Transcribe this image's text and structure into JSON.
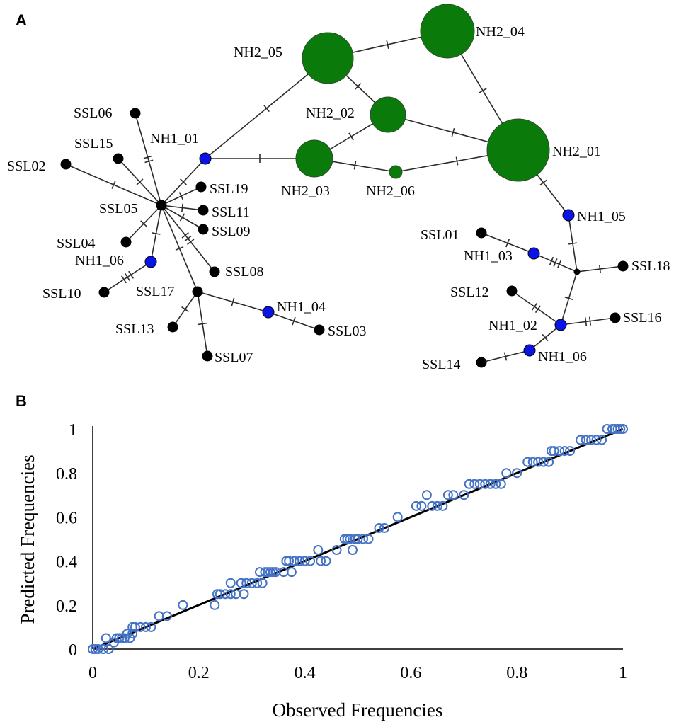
{
  "panel_a": {
    "letter": "A",
    "colors": {
      "NH2": "#0a7a0a",
      "NH1": "#0a14e6",
      "SSL": "#000000"
    },
    "nodes": [
      {
        "id": "NH2_05",
        "label": "NH2_05",
        "group": "NH2"
      },
      {
        "id": "NH2_04",
        "label": "NH2_04",
        "group": "NH2"
      },
      {
        "id": "NH2_02",
        "label": "NH2_02",
        "group": "NH2"
      },
      {
        "id": "NH2_03",
        "label": "NH2_03",
        "group": "NH2"
      },
      {
        "id": "NH2_06",
        "label": "NH2_06",
        "group": "NH2"
      },
      {
        "id": "NH2_01",
        "label": "NH2_01",
        "group": "NH2"
      },
      {
        "id": "NH1_01",
        "label": "NH1_01",
        "group": "NH1"
      },
      {
        "id": "NH1_06a",
        "label": "NH1_06",
        "group": "NH1"
      },
      {
        "id": "NH1_04",
        "label": "NH1_04",
        "group": "NH1"
      },
      {
        "id": "NH1_05",
        "label": "NH1_05",
        "group": "NH1"
      },
      {
        "id": "NH1_03",
        "label": "NH1_03",
        "group": "NH1"
      },
      {
        "id": "NH1_02",
        "label": "NH1_02",
        "group": "NH1"
      },
      {
        "id": "NH1_06b",
        "label": "NH1_06",
        "group": "NH1"
      },
      {
        "id": "SSL06",
        "label": "SSL06",
        "group": "SSL"
      },
      {
        "id": "SSL15",
        "label": "SSL15",
        "group": "SSL"
      },
      {
        "id": "SSL02",
        "label": "SSL02",
        "group": "SSL"
      },
      {
        "id": "SSL05",
        "label": "SSL05",
        "group": "SSL"
      },
      {
        "id": "SSL19",
        "label": "SSL19",
        "group": "SSL"
      },
      {
        "id": "SSL11",
        "label": "SSL11",
        "group": "SSL"
      },
      {
        "id": "SSL09",
        "label": "SSL09",
        "group": "SSL"
      },
      {
        "id": "SSL04",
        "label": "SSL04",
        "group": "SSL"
      },
      {
        "id": "SSL08",
        "label": "SSL08",
        "group": "SSL"
      },
      {
        "id": "SSL10",
        "label": "SSL10",
        "group": "SSL"
      },
      {
        "id": "SSL17",
        "label": "SSL17",
        "group": "SSL"
      },
      {
        "id": "SSL13",
        "label": "SSL13",
        "group": "SSL"
      },
      {
        "id": "SSL07",
        "label": "SSL07",
        "group": "SSL"
      },
      {
        "id": "SSL03",
        "label": "SSL03",
        "group": "SSL"
      },
      {
        "id": "SSL01",
        "label": "SSL01",
        "group": "SSL"
      },
      {
        "id": "SSL18",
        "label": "SSL18",
        "group": "SSL"
      },
      {
        "id": "SSL12",
        "label": "SSL12",
        "group": "SSL"
      },
      {
        "id": "SSL16",
        "label": "SSL16",
        "group": "SSL"
      },
      {
        "id": "SSL14",
        "label": "SSL14",
        "group": "SSL"
      },
      {
        "id": "MV1",
        "label": "",
        "group": "SSL"
      }
    ],
    "edges": [
      {
        "from": "NH2_05",
        "to": "NH2_04",
        "steps": 1
      },
      {
        "from": "NH2_05",
        "to": "NH2_02",
        "steps": 1
      },
      {
        "from": "NH2_04",
        "to": "NH2_01",
        "steps": 1
      },
      {
        "from": "NH2_02",
        "to": "NH2_03",
        "steps": 1
      },
      {
        "from": "NH2_02",
        "to": "NH2_01",
        "steps": 1
      },
      {
        "from": "NH2_03",
        "to": "NH2_06",
        "steps": 1
      },
      {
        "from": "NH2_06",
        "to": "NH2_01",
        "steps": 1
      },
      {
        "from": "NH1_01",
        "to": "NH2_05",
        "steps": 1
      },
      {
        "from": "NH1_01",
        "to": "NH2_03",
        "steps": 1
      },
      {
        "from": "SSL05",
        "to": "NH1_01",
        "steps": 1
      },
      {
        "from": "SSL05",
        "to": "SSL06",
        "steps": 2
      },
      {
        "from": "SSL05",
        "to": "SSL15",
        "steps": 1
      },
      {
        "from": "SSL05",
        "to": "SSL02",
        "steps": 1
      },
      {
        "from": "SSL05",
        "to": "SSL19",
        "steps": 1
      },
      {
        "from": "SSL05",
        "to": "SSL11",
        "steps": 1
      },
      {
        "from": "SSL05",
        "to": "SSL09",
        "steps": 1
      },
      {
        "from": "SSL05",
        "to": "SSL04",
        "steps": 1
      },
      {
        "from": "SSL05",
        "to": "SSL08",
        "steps": 3
      },
      {
        "from": "SSL05",
        "to": "NH1_06a",
        "steps": 1
      },
      {
        "from": "NH1_06a",
        "to": "SSL10",
        "steps": 3
      },
      {
        "from": "SSL05",
        "to": "SSL17",
        "steps": 1
      },
      {
        "from": "SSL17",
        "to": "SSL13",
        "steps": 1
      },
      {
        "from": "SSL17",
        "to": "SSL07",
        "steps": 1
      },
      {
        "from": "SSL17",
        "to": "NH1_04",
        "steps": 1
      },
      {
        "from": "NH1_04",
        "to": "SSL03",
        "steps": 1
      },
      {
        "from": "NH2_01",
        "to": "NH1_05",
        "steps": 1
      },
      {
        "from": "NH1_05",
        "to": "MV1",
        "steps": 1
      },
      {
        "from": "SSL01",
        "to": "NH1_03",
        "steps": 1
      },
      {
        "from": "NH1_03",
        "to": "MV1",
        "steps": 3
      },
      {
        "from": "MV1",
        "to": "SSL18",
        "steps": 1
      },
      {
        "from": "MV1",
        "to": "NH1_02",
        "steps": 1
      },
      {
        "from": "SSL12",
        "to": "NH1_02",
        "steps": 2
      },
      {
        "from": "NH1_02",
        "to": "SSL16",
        "steps": 2
      },
      {
        "from": "NH1_02",
        "to": "NH1_06b",
        "steps": 1
      },
      {
        "from": "NH1_06b",
        "to": "SSL14",
        "steps": 1
      }
    ]
  },
  "panel_b": {
    "letter": "B",
    "chart_data": {
      "type": "scatter",
      "xlabel": "Observed Frequencies",
      "ylabel": "Predicted Frequencies",
      "xlim": [
        0,
        1
      ],
      "ylim": [
        0,
        1
      ],
      "x_ticks": [
        "0",
        "0.2",
        "0.4",
        "0.6",
        "0.8",
        "1"
      ],
      "y_ticks": [
        "0",
        "0.2",
        "0.4",
        "0.6",
        "0.8",
        "1"
      ],
      "grid": false,
      "marker_color": "#4472c4",
      "line_color": "#000000",
      "fit_line": {
        "x": [
          0,
          1
        ],
        "y": [
          0,
          1
        ]
      },
      "points": [
        [
          0.0,
          0.0
        ],
        [
          0.005,
          0.0
        ],
        [
          0.01,
          0.0
        ],
        [
          0.02,
          0.0
        ],
        [
          0.03,
          0.0
        ],
        [
          0.025,
          0.05
        ],
        [
          0.04,
          0.03
        ],
        [
          0.045,
          0.05
        ],
        [
          0.05,
          0.05
        ],
        [
          0.055,
          0.05
        ],
        [
          0.06,
          0.05
        ],
        [
          0.065,
          0.07
        ],
        [
          0.07,
          0.05
        ],
        [
          0.075,
          0.07
        ],
        [
          0.075,
          0.1
        ],
        [
          0.08,
          0.1
        ],
        [
          0.09,
          0.1
        ],
        [
          0.1,
          0.1
        ],
        [
          0.11,
          0.1
        ],
        [
          0.125,
          0.15
        ],
        [
          0.14,
          0.15
        ],
        [
          0.17,
          0.2
        ],
        [
          0.23,
          0.2
        ],
        [
          0.235,
          0.25
        ],
        [
          0.24,
          0.25
        ],
        [
          0.25,
          0.25
        ],
        [
          0.26,
          0.25
        ],
        [
          0.26,
          0.3
        ],
        [
          0.27,
          0.25
        ],
        [
          0.28,
          0.3
        ],
        [
          0.285,
          0.25
        ],
        [
          0.29,
          0.3
        ],
        [
          0.3,
          0.3
        ],
        [
          0.31,
          0.3
        ],
        [
          0.315,
          0.35
        ],
        [
          0.32,
          0.3
        ],
        [
          0.325,
          0.35
        ],
        [
          0.33,
          0.35
        ],
        [
          0.335,
          0.35
        ],
        [
          0.34,
          0.35
        ],
        [
          0.345,
          0.35
        ],
        [
          0.36,
          0.35
        ],
        [
          0.365,
          0.4
        ],
        [
          0.37,
          0.4
        ],
        [
          0.375,
          0.35
        ],
        [
          0.38,
          0.4
        ],
        [
          0.39,
          0.4
        ],
        [
          0.4,
          0.4
        ],
        [
          0.41,
          0.4
        ],
        [
          0.425,
          0.45
        ],
        [
          0.43,
          0.4
        ],
        [
          0.44,
          0.4
        ],
        [
          0.46,
          0.45
        ],
        [
          0.475,
          0.5
        ],
        [
          0.48,
          0.5
        ],
        [
          0.485,
          0.5
        ],
        [
          0.49,
          0.45
        ],
        [
          0.495,
          0.5
        ],
        [
          0.5,
          0.5
        ],
        [
          0.51,
          0.5
        ],
        [
          0.52,
          0.5
        ],
        [
          0.54,
          0.55
        ],
        [
          0.55,
          0.55
        ],
        [
          0.575,
          0.6
        ],
        [
          0.61,
          0.65
        ],
        [
          0.62,
          0.65
        ],
        [
          0.63,
          0.7
        ],
        [
          0.64,
          0.65
        ],
        [
          0.65,
          0.65
        ],
        [
          0.66,
          0.65
        ],
        [
          0.67,
          0.7
        ],
        [
          0.68,
          0.7
        ],
        [
          0.7,
          0.7
        ],
        [
          0.71,
          0.75
        ],
        [
          0.72,
          0.75
        ],
        [
          0.73,
          0.75
        ],
        [
          0.74,
          0.75
        ],
        [
          0.75,
          0.75
        ],
        [
          0.76,
          0.75
        ],
        [
          0.77,
          0.75
        ],
        [
          0.78,
          0.8
        ],
        [
          0.8,
          0.8
        ],
        [
          0.82,
          0.85
        ],
        [
          0.83,
          0.85
        ],
        [
          0.84,
          0.85
        ],
        [
          0.85,
          0.85
        ],
        [
          0.86,
          0.85
        ],
        [
          0.865,
          0.9
        ],
        [
          0.87,
          0.9
        ],
        [
          0.88,
          0.9
        ],
        [
          0.89,
          0.9
        ],
        [
          0.9,
          0.9
        ],
        [
          0.92,
          0.95
        ],
        [
          0.93,
          0.95
        ],
        [
          0.94,
          0.95
        ],
        [
          0.95,
          0.95
        ],
        [
          0.96,
          0.95
        ],
        [
          0.97,
          1.0
        ],
        [
          0.98,
          1.0
        ],
        [
          0.985,
          1.0
        ],
        [
          0.99,
          1.0
        ],
        [
          0.995,
          1.0
        ],
        [
          1.0,
          1.0
        ]
      ]
    }
  }
}
